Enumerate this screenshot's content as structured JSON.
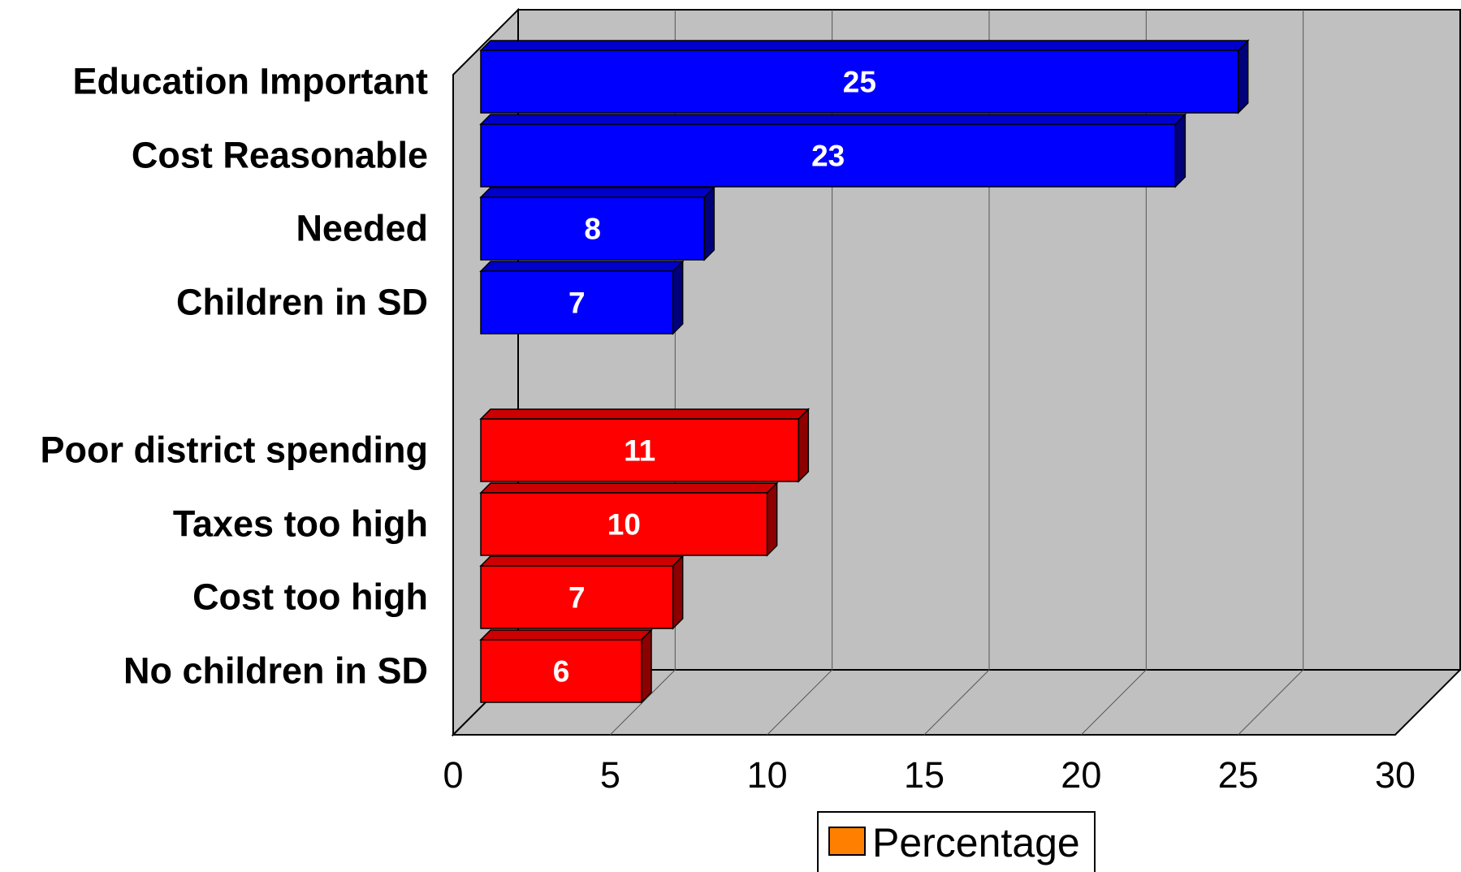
{
  "chart_data": {
    "type": "bar",
    "orientation": "horizontal",
    "style": "3d",
    "categories": [
      "Education Important",
      "Cost Reasonable",
      "Needed",
      "Children in SD",
      "Poor district spending",
      "Taxes too high",
      "Cost too high",
      "No children in SD"
    ],
    "values": [
      25,
      23,
      8,
      7,
      11,
      10,
      7,
      6
    ],
    "data_labels": [
      "25",
      "23",
      "8",
      "7",
      "11",
      "10",
      "7",
      "6"
    ],
    "groups": [
      {
        "bars": [
          0,
          1,
          2,
          3
        ],
        "color": "#0000ff",
        "side_color": "#00007a",
        "top_color": "#0000cc"
      },
      {
        "bars": [
          4,
          5,
          6,
          7
        ],
        "color": "#ff0000",
        "side_color": "#8c0000",
        "top_color": "#cc0000"
      }
    ],
    "xlim": [
      0,
      30
    ],
    "xticks": [
      "0",
      "5",
      "10",
      "15",
      "20",
      "25",
      "30"
    ],
    "grid": "vertical",
    "wall_color": "#c0c0c0",
    "legend": {
      "position": "bottom",
      "entries": [
        {
          "label": "Percentage",
          "color": "#ff8000"
        }
      ]
    },
    "title": "",
    "xlabel": "",
    "ylabel": ""
  }
}
